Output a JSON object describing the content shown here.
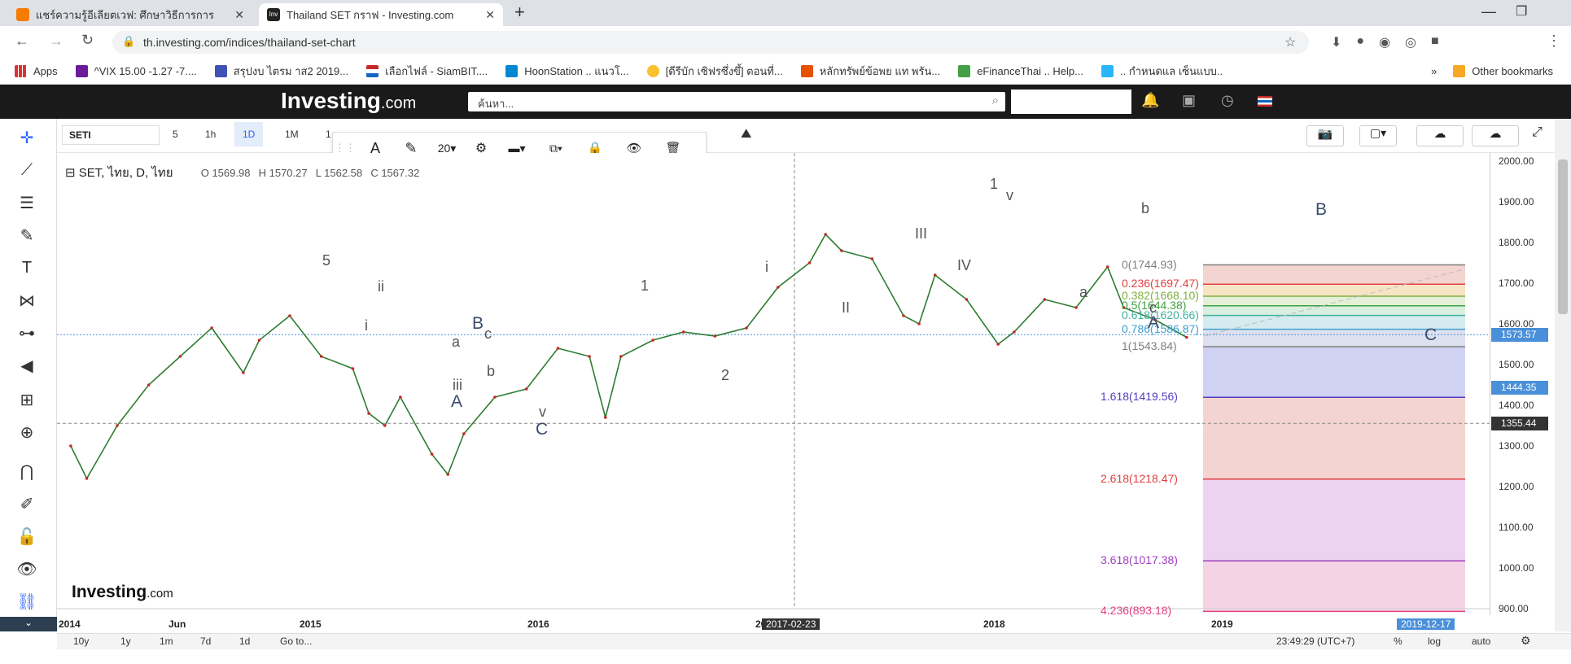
{
  "browser": {
    "tabs": [
      {
        "title": "แชร์ความรู้อีเลียตเวฟ: ศึกษาวิธีการการ",
        "active": false
      },
      {
        "title": "Thailand SET กราฟ - Investing.com",
        "active": true
      }
    ],
    "new_tab": "+",
    "url": "th.investing.com/indices/thailand-set-chart",
    "bookmarks": [
      "Apps",
      "^VIX 15.00 -1.27 -7....",
      "สรุปงบ ไตรม าส2 2019...",
      "เลือกไฟล์ - SiamBIT....",
      "HoonStation .. แนวโ...",
      "[ดีรีบัก เซิฟรซึ่งขึ้] ตอนที่...",
      "หลักทรัพย์ข้อพย แท พรัน...",
      "eFinanceThai .. Help...",
      ".. กำหนดแล เซ็นแบบ..",
      "»",
      "Other bookmarks"
    ]
  },
  "site": {
    "logo_main": "Investing",
    "logo_suffix": ".com",
    "search_placeholder": "ค้นหา..."
  },
  "toolbar": {
    "symbol": "SETI",
    "timeframes": [
      "5",
      "1h",
      "1D",
      "1M",
      "1"
    ],
    "active_timeframe": "1D",
    "font_size": "20"
  },
  "legend": {
    "title": "SET, ไทย, D, ไทย",
    "open": "O 1569.98",
    "high": "H 1570.27",
    "low": "L 1562.58",
    "close": "C 1567.32"
  },
  "chart_data": {
    "type": "line",
    "instrument": "SET",
    "x_ticks": [
      "2014",
      "Jun",
      "2015",
      "2016",
      "2017",
      "2018",
      "2019"
    ],
    "y_ticks": [
      "2000.00",
      "1900.00",
      "1800.00",
      "1700.00",
      "1600.00",
      "1500.00",
      "1400.00",
      "1300.00",
      "1200.00",
      "1100.00",
      "1000.00",
      "900.00"
    ],
    "ylim": [
      900,
      2020
    ],
    "y_log": false,
    "price_tags": [
      {
        "value": "1573.57",
        "color": "#4a90d9"
      },
      {
        "value": "1444.35",
        "color": "#4a90d9"
      },
      {
        "value": "1355.44",
        "color": "#333333"
      }
    ],
    "crosshair_date": "2017-02-23",
    "last_date": "2019-12-17",
    "series": [
      {
        "x": [
          "2014-01",
          "2014-02",
          "2014-04",
          "2014-06",
          "2014-08",
          "2014-10",
          "2014-12",
          "2015-01",
          "2015-03",
          "2015-05",
          "2015-07",
          "2015-08",
          "2015-09",
          "2015-10",
          "2015-12",
          "2016-01",
          "2016-02",
          "2016-04",
          "2016-06",
          "2016-08",
          "2016-10",
          "2016-11",
          "2016-12",
          "2017-02",
          "2017-04",
          "2017-06",
          "2017-08",
          "2017-10",
          "2017-12",
          "2018-01",
          "2018-02",
          "2018-04",
          "2018-06",
          "2018-07",
          "2018-08",
          "2018-10",
          "2018-12",
          "2019-01",
          "2019-03",
          "2019-05",
          "2019-07",
          "2019-08",
          "2019-10",
          "2019-12"
        ],
        "y": [
          1300,
          1220,
          1350,
          1450,
          1520,
          1590,
          1480,
          1560,
          1620,
          1520,
          1490,
          1380,
          1350,
          1420,
          1280,
          1230,
          1330,
          1420,
          1440,
          1540,
          1520,
          1370,
          1520,
          1560,
          1580,
          1570,
          1590,
          1690,
          1750,
          1820,
          1780,
          1760,
          1620,
          1600,
          1720,
          1660,
          1550,
          1580,
          1660,
          1640,
          1740,
          1640,
          1610,
          1567
        ]
      }
    ],
    "fibonacci": [
      {
        "label": "0(1744.93)",
        "color": "#808080"
      },
      {
        "label": "0.236(1697.47)",
        "color": "#e04040"
      },
      {
        "label": "0.382(1668.10)",
        "color": "#80b040"
      },
      {
        "label": "0.5(1644.38)",
        "color": "#40a040"
      },
      {
        "label": "0.618(1620.66)",
        "color": "#40b0a0"
      },
      {
        "label": "0.786(1586.87)",
        "color": "#40a0d0"
      },
      {
        "label": "1(1543.84)",
        "color": "#808080"
      },
      {
        "label": "1.618(1419.56)",
        "color": "#5040c0"
      },
      {
        "label": "2.618(1218.47)",
        "color": "#e04040"
      },
      {
        "label": "3.618(1017.38)",
        "color": "#a040c0"
      },
      {
        "label": "4.236(893.18)",
        "color": "#e04080"
      }
    ],
    "wave_labels": [
      "1",
      "2",
      "5",
      "ii",
      "i",
      "iii",
      "A",
      "a",
      "b",
      "c",
      "B",
      "v",
      "C",
      "1",
      "i",
      "II",
      "III",
      "IV",
      "v",
      "a",
      "b",
      "c",
      "A",
      "B",
      "C"
    ]
  },
  "bottom": {
    "ranges": [
      "10y",
      "1y",
      "1m",
      "7d",
      "1d",
      "Go to..."
    ],
    "clock": "23:49:29 (UTC+7)",
    "pct": "%",
    "log": "log",
    "auto": "auto"
  }
}
